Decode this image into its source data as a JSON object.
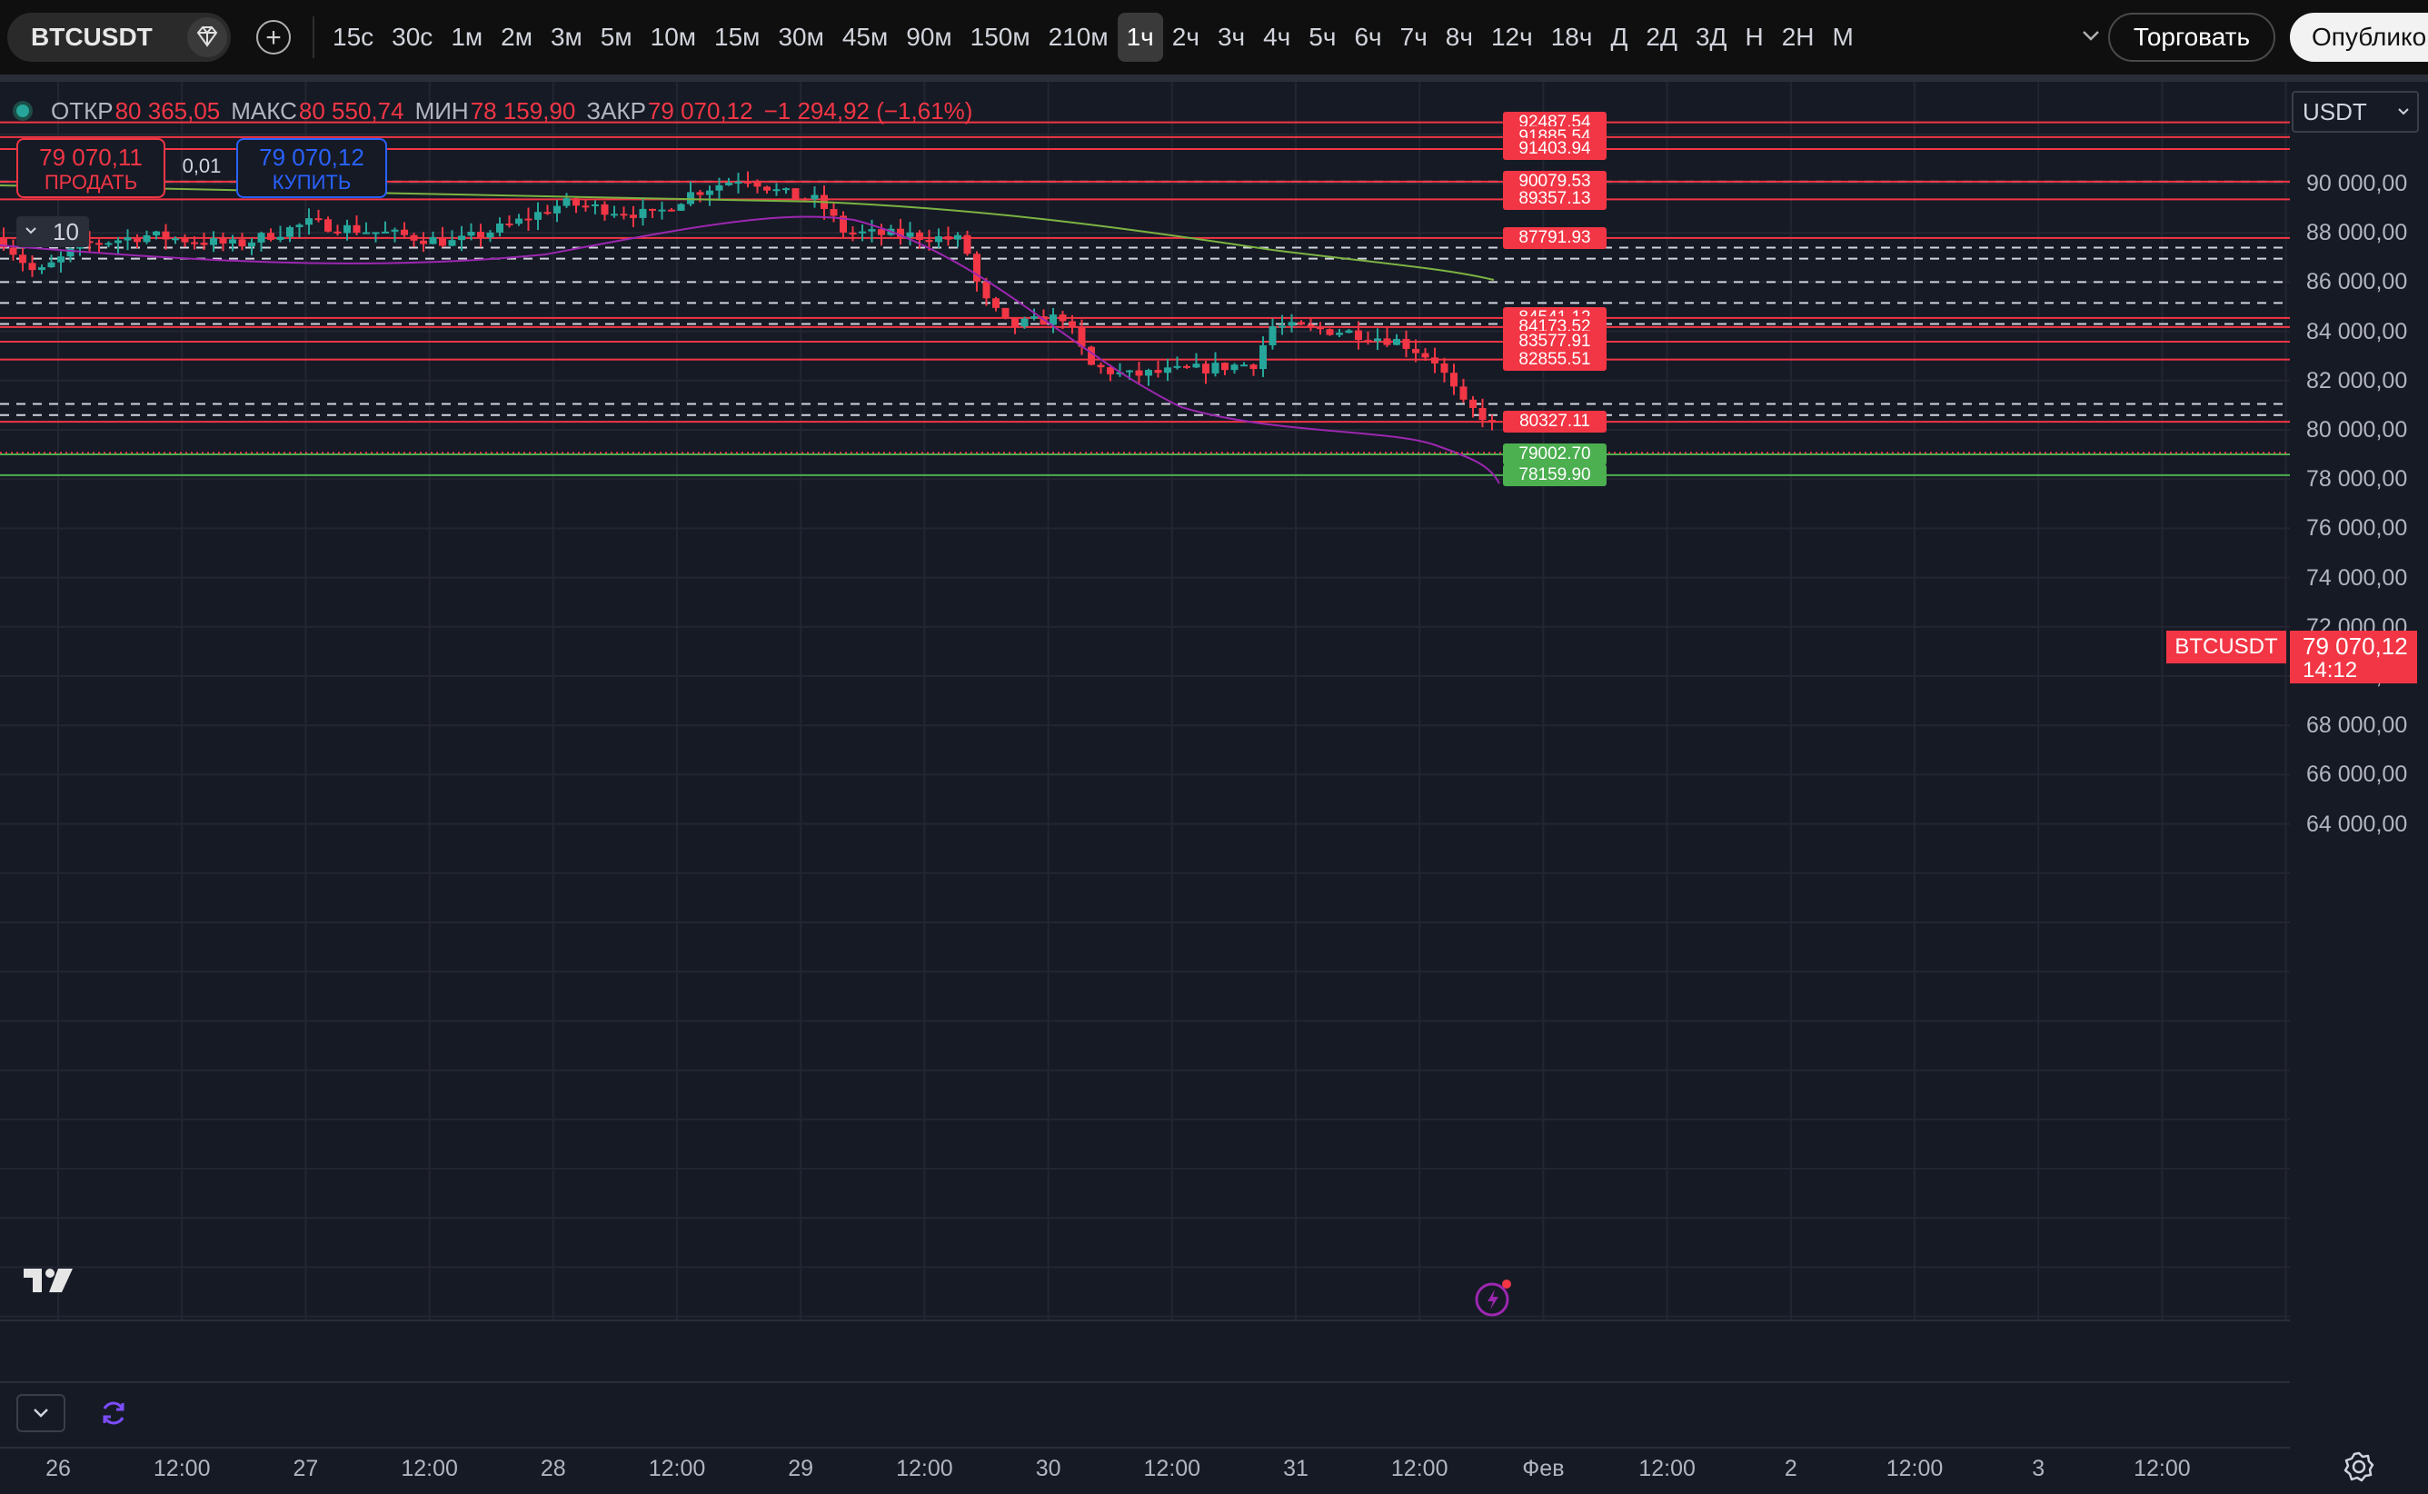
{
  "toolbar": {
    "symbol": "BTCUSDT",
    "timeframes": [
      "15с",
      "30с",
      "1м",
      "2м",
      "3м",
      "5м",
      "10м",
      "15м",
      "30м",
      "45м",
      "90м",
      "150м",
      "210м",
      "1ч",
      "2ч",
      "3ч",
      "4ч",
      "5ч",
      "6ч",
      "7ч",
      "8ч",
      "12ч",
      "18ч",
      "Д",
      "2Д",
      "3Д",
      "Н",
      "2Н",
      "М"
    ],
    "active_timeframe": "1ч",
    "trade_label": "Торговать",
    "publish_label": "Опубликовать"
  },
  "legend": {
    "open_label": "ОТКР",
    "open": "80 365,05",
    "high_label": "МАКС",
    "high": "80 550,74",
    "low_label": "МИН",
    "low": "78 159,90",
    "close_label": "ЗАКР",
    "close": "79 070,12",
    "change": "−1 294,92 (−1,61%)"
  },
  "trade_panel": {
    "sell_price": "79 070,11",
    "sell_label": "ПРОДАТЬ",
    "spread": "0,01",
    "buy_price": "79 070,12",
    "buy_label": "КУПИТЬ",
    "quantity": "10"
  },
  "price_scale": {
    "currency": "USDT",
    "ticks": [
      "90 000,00",
      "88 000,00",
      "86 000,00",
      "84 000,00",
      "82 000,00",
      "80 000,00",
      "78 000,00",
      "76 000,00",
      "74 000,00",
      "72 000,00",
      "70 000,00",
      "68 000,00",
      "66 000,00",
      "64 000,00"
    ],
    "symbol_tag": "BTCUSDT",
    "last_price": "79 070,12",
    "countdown": "14:12"
  },
  "time_axis": {
    "ticks": [
      "26",
      "12:00",
      "27",
      "12:00",
      "28",
      "12:00",
      "29",
      "12:00",
      "30",
      "12:00",
      "31",
      "12:00",
      "Фев",
      "12:00",
      "2",
      "12:00",
      "3",
      "12:00"
    ]
  },
  "order_lines": [
    {
      "label": "92487.54",
      "color": "red"
    },
    {
      "label": "91885.54",
      "color": "red"
    },
    {
      "label": "91403.94",
      "color": "red"
    },
    {
      "label": "90079.53",
      "color": "red"
    },
    {
      "label": "89357.13",
      "color": "red"
    },
    {
      "label": "87791.93",
      "color": "red"
    },
    {
      "label": "84541.12",
      "color": "red"
    },
    {
      "label": "84173.52",
      "color": "red"
    },
    {
      "label": "83577.91",
      "color": "red"
    },
    {
      "label": "82855.51",
      "color": "red"
    },
    {
      "label": "80327.11",
      "color": "red"
    },
    {
      "label": "79002.70",
      "color": "green"
    },
    {
      "label": "78159.90",
      "color": "green"
    }
  ],
  "colors": {
    "up": "#26a69a",
    "down": "#f23645",
    "background": "#161a25",
    "ma_purple": "#9c27b0",
    "ma_green": "#7cb342"
  },
  "icons": [
    "diamond-icon",
    "plus-icon",
    "chevron-down-icon",
    "tradingview-logo-icon",
    "lightning-icon",
    "refresh-icon",
    "gear-icon"
  ]
}
